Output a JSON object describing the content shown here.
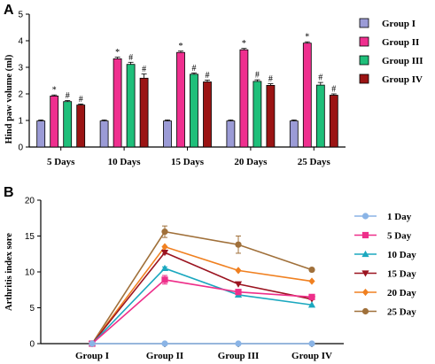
{
  "chart_data": [
    {
      "panel_label": "A",
      "type": "bar",
      "ylabel": "Hind paw volume (ml)",
      "ylim": [
        0,
        5
      ],
      "yticks": [
        "0",
        "1",
        "2",
        "3",
        "4",
        "5"
      ],
      "categories": [
        "5 Days",
        "10 Days",
        "15 Days",
        "20 Days",
        "25 Days"
      ],
      "legend_position": "right",
      "series": [
        {
          "name": "Group I",
          "color": "#9b9bd6",
          "values": [
            0.98,
            0.98,
            0.98,
            0.98,
            0.98
          ],
          "errors": [
            0.04,
            0.04,
            0.04,
            0.04,
            0.04
          ],
          "marks": [
            "",
            "",
            "",
            "",
            ""
          ]
        },
        {
          "name": "Group II",
          "color": "#ef2f8f",
          "values": [
            1.92,
            3.32,
            3.56,
            3.66,
            3.91
          ],
          "errors": [
            0.04,
            0.06,
            0.05,
            0.05,
            0.05
          ],
          "marks": [
            "*",
            "*",
            "*",
            "*",
            "*"
          ]
        },
        {
          "name": "Group III",
          "color": "#1fbf7a",
          "values": [
            1.71,
            3.11,
            2.74,
            2.47,
            2.33
          ],
          "errors": [
            0.04,
            0.08,
            0.05,
            0.06,
            0.1
          ],
          "marks": [
            "#",
            "#",
            "#",
            "#",
            "#"
          ]
        },
        {
          "name": "Group IV",
          "color": "#9b1414",
          "values": [
            1.58,
            2.59,
            2.45,
            2.32,
            1.95
          ],
          "errors": [
            0.04,
            0.16,
            0.07,
            0.06,
            0.05
          ],
          "marks": [
            "#",
            "#",
            "#",
            "#",
            "#"
          ]
        }
      ]
    },
    {
      "panel_label": "B",
      "type": "line",
      "ylabel": "Arthritis index sore",
      "ylim": [
        0,
        20
      ],
      "yticks": [
        "0",
        "5",
        "10",
        "15",
        "20"
      ],
      "categories": [
        "Group I",
        "Group II",
        "Group III",
        "Group IV"
      ],
      "legend_position": "right",
      "series": [
        {
          "name": "1 Day",
          "color": "#8ab4e6",
          "marker": "circle",
          "values": [
            0,
            0,
            0,
            0
          ],
          "errors": [
            0,
            0,
            0,
            0
          ]
        },
        {
          "name": "5 Day",
          "color": "#ee2f8a",
          "marker": "square",
          "values": [
            0,
            8.9,
            7.2,
            6.5
          ],
          "errors": [
            0,
            0.6,
            0,
            0.3
          ]
        },
        {
          "name": "10 Day",
          "color": "#1ba8bf",
          "marker": "triangle",
          "values": [
            0,
            10.5,
            6.8,
            5.4
          ],
          "errors": [
            0,
            0.2,
            0,
            0
          ]
        },
        {
          "name": "15 Day",
          "color": "#9b1420",
          "marker": "tri-down",
          "values": [
            0,
            12.7,
            8.3,
            6.2
          ],
          "errors": [
            0,
            0.2,
            0,
            0
          ]
        },
        {
          "name": "20 Day",
          "color": "#f08020",
          "marker": "diamond",
          "values": [
            0,
            13.5,
            10.2,
            8.7
          ],
          "errors": [
            0,
            0,
            0,
            0
          ]
        },
        {
          "name": "25 Day",
          "color": "#a0703a",
          "marker": "circle",
          "values": [
            0,
            15.6,
            13.8,
            10.3
          ],
          "errors": [
            0,
            0.8,
            1.2,
            0.2
          ]
        }
      ]
    }
  ]
}
